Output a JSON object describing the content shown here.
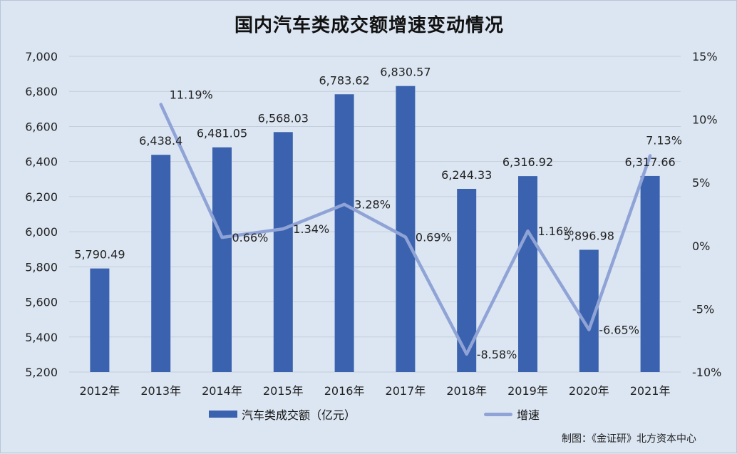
{
  "chart_data": {
    "type": "bar",
    "title": "国内汽车类成交额增速变动情况",
    "categories": [
      "2012年",
      "2013年",
      "2014年",
      "2015年",
      "2016年",
      "2017年",
      "2018年",
      "2019年",
      "2020年",
      "2021年"
    ],
    "series": [
      {
        "name": "汽车类成交额（亿元）",
        "type": "bar",
        "axis": "left",
        "color": "#3a62ae",
        "values": [
          5790.49,
          6438.4,
          6481.05,
          6568.03,
          6783.62,
          6830.57,
          6244.33,
          6316.92,
          5896.98,
          6317.66
        ],
        "labels": [
          "5,790.49",
          "6,438.4",
          "6,481.05",
          "6,568.03",
          "6,783.62",
          "6,830.57",
          "6,244.33",
          "6,316.92",
          "5,896.98",
          "6,317.66"
        ]
      },
      {
        "name": "增速",
        "type": "line",
        "axis": "right",
        "color": "#8fa3d6",
        "values": [
          null,
          11.19,
          0.66,
          1.34,
          3.28,
          0.69,
          -8.58,
          1.16,
          -6.65,
          7.13
        ],
        "labels": [
          "",
          "11.19%",
          "0.66%",
          "1.34%",
          "3.28%",
          "0.69%",
          "-8.58%",
          "1.16%",
          "-6.65%",
          "7.13%"
        ]
      }
    ],
    "y_left": {
      "min": 5200,
      "max": 7000,
      "ticks": [
        5200,
        5400,
        5600,
        5800,
        6000,
        6200,
        6400,
        6600,
        6800,
        7000
      ],
      "tick_labels": [
        "5,200",
        "5,400",
        "5,600",
        "5,800",
        "6,000",
        "6,200",
        "6,400",
        "6,600",
        "6,800",
        "7,000"
      ]
    },
    "y_right": {
      "min": -10,
      "max": 15,
      "ticks": [
        -10,
        -5,
        0,
        5,
        10,
        15
      ],
      "tick_labels": [
        "-10%",
        "-5%",
        "0%",
        "5%",
        "10%",
        "15%"
      ]
    },
    "grid": true,
    "legend": "bottom"
  },
  "legend": {
    "bar_label": "汽车类成交额（亿元）",
    "line_label": "增速"
  },
  "source_note": "制图：《金证研》北方资本中心",
  "colors": {
    "background": "#dce6f2",
    "bar": "#3a62ae",
    "line": "#8fa3d6",
    "grid": "#c5cfdc"
  }
}
